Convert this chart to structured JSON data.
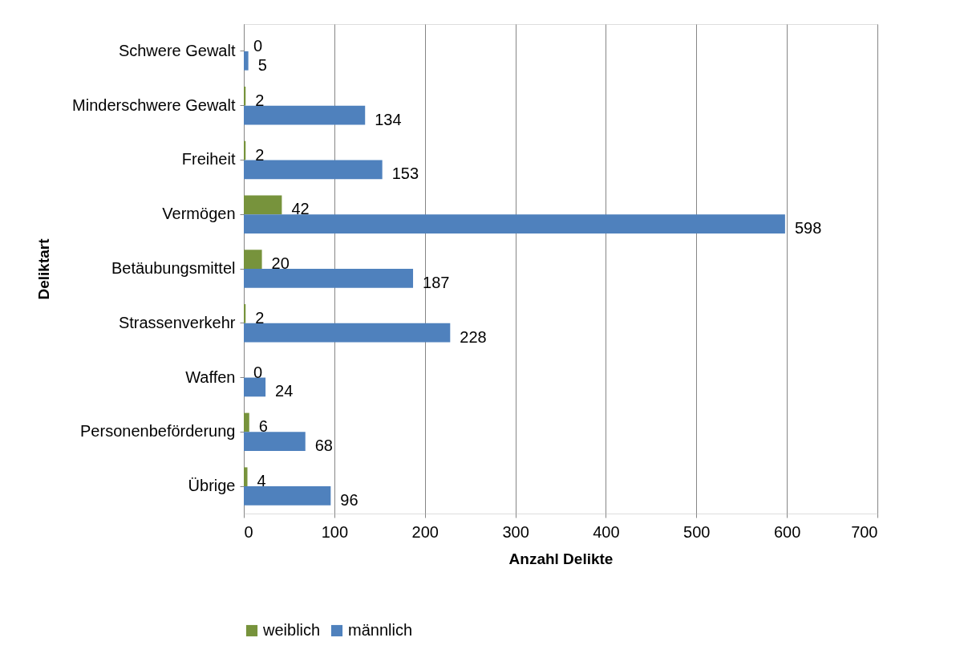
{
  "chart_data": {
    "type": "bar",
    "orientation": "horizontal",
    "xlabel": "Anzahl Delikte",
    "ylabel": "Deliktart",
    "categories": [
      "Schwere Gewalt",
      "Minderschwere Gewalt",
      "Freiheit",
      "Vermögen",
      "Betäubungsmittel",
      "Strassenverkehr",
      "Waffen",
      "Personenbeförderung",
      "Übrige"
    ],
    "series": [
      {
        "name": "weiblich",
        "color": "#77933c",
        "values": [
          0,
          2,
          2,
          42,
          20,
          2,
          0,
          6,
          4
        ]
      },
      {
        "name": "männlich",
        "color": "#4f81bd",
        "values": [
          5,
          134,
          153,
          598,
          187,
          228,
          24,
          68,
          96
        ]
      }
    ],
    "xlim": [
      0,
      700
    ],
    "xticks": [
      0,
      100,
      200,
      300,
      400,
      500,
      600,
      700
    ],
    "grid": "x",
    "legend": "bottom",
    "data_labels": true
  }
}
